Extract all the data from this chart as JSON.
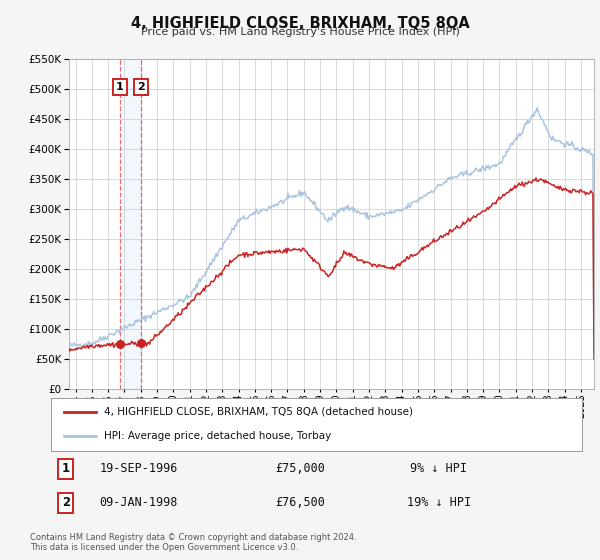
{
  "title": "4, HIGHFIELD CLOSE, BRIXHAM, TQ5 8QA",
  "subtitle": "Price paid vs. HM Land Registry's House Price Index (HPI)",
  "background_color": "#f5f5f5",
  "plot_bg_color": "#ffffff",
  "grid_color": "#cccccc",
  "hpi_color": "#aac4e0",
  "price_color": "#cc2222",
  "sale1_date": 1996.72,
  "sale1_price": 75000,
  "sale1_label": "1",
  "sale1_display": "19-SEP-1996",
  "sale1_amount": "£75,000",
  "sale1_hpi": "9% ↓ HPI",
  "sale2_date": 1998.03,
  "sale2_price": 76500,
  "sale2_label": "2",
  "sale2_display": "09-JAN-1998",
  "sale2_amount": "£76,500",
  "sale2_hpi": "19% ↓ HPI",
  "xmin": 1993.6,
  "xmax": 2025.8,
  "ymin": 0,
  "ymax": 550000,
  "yticks": [
    0,
    50000,
    100000,
    150000,
    200000,
    250000,
    300000,
    350000,
    400000,
    450000,
    500000,
    550000
  ],
  "legend_house_label": "4, HIGHFIELD CLOSE, BRIXHAM, TQ5 8QA (detached house)",
  "legend_hpi_label": "HPI: Average price, detached house, Torbay",
  "footnote1": "Contains HM Land Registry data © Crown copyright and database right 2024.",
  "footnote2": "This data is licensed under the Open Government Licence v3.0."
}
